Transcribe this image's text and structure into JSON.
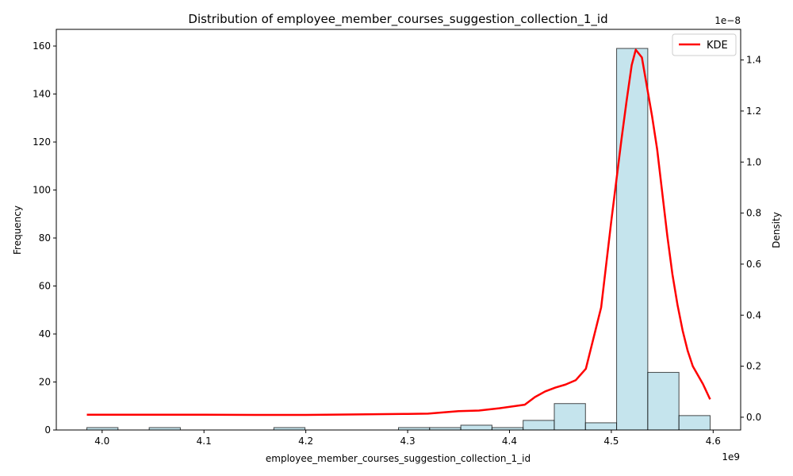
{
  "chart_data": {
    "type": "bar",
    "title": "Distribution of employee_member_courses_suggestion_collection_1_id",
    "xlabel": "employee_member_courses_suggestion_collection_1_id",
    "ylabel": "Frequency",
    "y2label": "Density",
    "x_offset_label": "1e9",
    "y2_offset_label": "1e−8",
    "xlim": [
      3.955,
      4.627
    ],
    "ylim": [
      0,
      166.95
    ],
    "y2lim": [
      -0.05,
      1.52
    ],
    "x_ticks": [
      4.0,
      4.1,
      4.2,
      4.3,
      4.4,
      4.5,
      4.6
    ],
    "y_ticks": [
      0,
      20,
      40,
      60,
      80,
      100,
      120,
      140,
      160
    ],
    "y2_ticks": [
      0.0,
      0.2,
      0.4,
      0.6,
      0.8,
      1.0,
      1.2,
      1.4
    ],
    "x_tick_labels": [
      "4.0",
      "4.1",
      "4.2",
      "4.3",
      "4.4",
      "4.5",
      "4.6"
    ],
    "y_tick_labels": [
      "0",
      "20",
      "40",
      "60",
      "80",
      "100",
      "120",
      "140",
      "160"
    ],
    "y2_tick_labels": [
      "0.0",
      "0.2",
      "0.4",
      "0.6",
      "0.8",
      "1.0",
      "1.2",
      "1.4"
    ],
    "bins": {
      "edges": [
        3.985,
        4.0156,
        4.0462,
        4.0768,
        4.1074,
        4.138,
        4.1686,
        4.1992,
        4.2298,
        4.2604,
        4.291,
        4.3216,
        4.3522,
        4.3828,
        4.4134,
        4.444,
        4.4746,
        4.5052,
        4.5358,
        4.5664,
        4.597
      ],
      "counts": [
        1,
        0,
        1,
        0,
        0,
        0,
        1,
        0,
        0,
        0,
        1,
        1,
        2,
        1,
        4,
        11,
        3,
        159,
        24,
        6
      ],
      "fill": "#add8e6",
      "alpha": 0.7,
      "edgecolor": "#000000"
    },
    "series": [
      {
        "name": "KDE",
        "color": "#ff0000",
        "x": [
          3.985,
          4.05,
          4.1,
          4.15,
          4.2,
          4.25,
          4.3,
          4.32,
          4.35,
          4.37,
          4.39,
          4.415,
          4.425,
          4.435,
          4.445,
          4.455,
          4.465,
          4.475,
          4.49,
          4.5,
          4.51,
          4.515,
          4.52,
          4.524,
          4.53,
          4.54,
          4.545,
          4.55,
          4.555,
          4.56,
          4.565,
          4.57,
          4.575,
          4.58,
          4.59,
          4.597
        ],
        "y": [
          0.01,
          0.01,
          0.01,
          0.009,
          0.009,
          0.011,
          0.013,
          0.014,
          0.024,
          0.026,
          0.035,
          0.049,
          0.079,
          0.101,
          0.116,
          0.128,
          0.145,
          0.19,
          0.43,
          0.77,
          1.09,
          1.24,
          1.38,
          1.44,
          1.41,
          1.18,
          1.05,
          0.88,
          0.71,
          0.56,
          0.44,
          0.34,
          0.26,
          0.2,
          0.13,
          0.07
        ]
      }
    ],
    "legend": {
      "position": "top-right",
      "entries": [
        "KDE"
      ]
    },
    "grid": false
  }
}
